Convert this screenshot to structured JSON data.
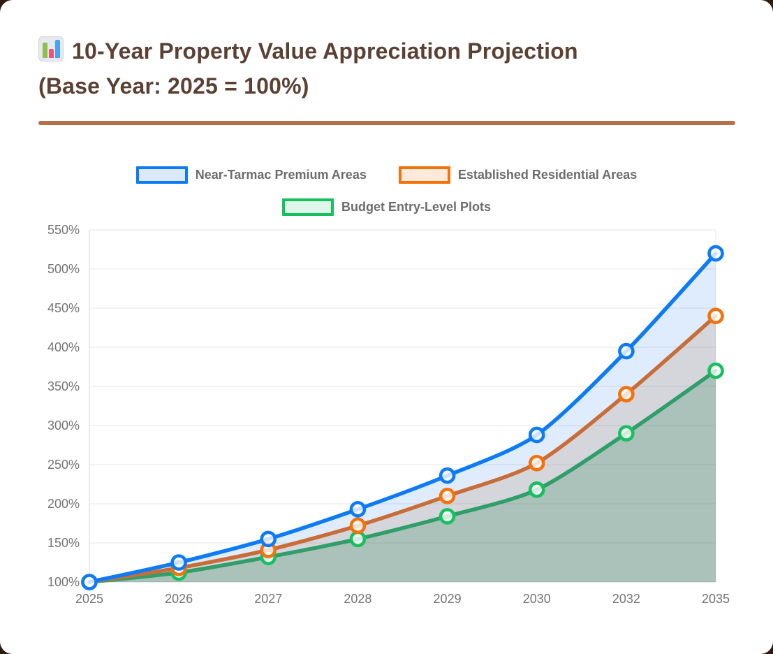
{
  "window": {
    "background_color": "#2e1b10",
    "card_color": "#ffffff"
  },
  "header": {
    "icon": "bar-chart-emoji-icon",
    "title_line1": "10-Year Property Value Appreciation Projection",
    "title_line2": "(Base Year: 2025 = 100%)",
    "title_color": "#5b4033",
    "divider_color": "#b5724a"
  },
  "chart_data": {
    "type": "line",
    "title": "10-Year Property Value Appreciation Projection (Base Year: 2025 = 100%)",
    "categories": [
      "2025",
      "2026",
      "2027",
      "2028",
      "2029",
      "2030",
      "2032",
      "2035"
    ],
    "series": [
      {
        "name": "Near-Tarmac Premium Areas",
        "values": [
          100,
          125,
          155,
          193,
          236,
          288,
          395,
          520
        ],
        "line_color": "#0d7bf5",
        "marker_color": "#0d7bf5",
        "area_color": "rgba(30,122,245,0.14)",
        "legend_fill": "#dbe9fb"
      },
      {
        "name": "Established Residential Areas",
        "values": [
          100,
          118,
          141,
          172,
          210,
          252,
          340,
          440
        ],
        "line_color": "#c86d38",
        "marker_color": "#f57208",
        "area_color": "rgba(160,95,45,0.16)",
        "legend_fill": "#fdeadb"
      },
      {
        "name": "Budget Entry-Level Plots",
        "values": [
          100,
          112,
          132,
          155,
          184,
          218,
          290,
          370
        ],
        "line_color": "#2f9e68",
        "marker_color": "#17c05f",
        "area_color": "rgba(45,140,90,0.26)",
        "legend_fill": "#def5e9"
      }
    ],
    "ylim": [
      100,
      550
    ],
    "ytick_step": 50,
    "ytick_labels": [
      "100%",
      "150%",
      "200%",
      "250%",
      "300%",
      "350%",
      "400%",
      "450%",
      "500%",
      "550%"
    ],
    "ytick_suffix": "%",
    "grid": true,
    "legend_position": "top",
    "axis_text_color": "#757575",
    "grid_color": "#ececec",
    "axis_line_color": "#dedede",
    "legend_text_color": "#6c6c6c"
  }
}
